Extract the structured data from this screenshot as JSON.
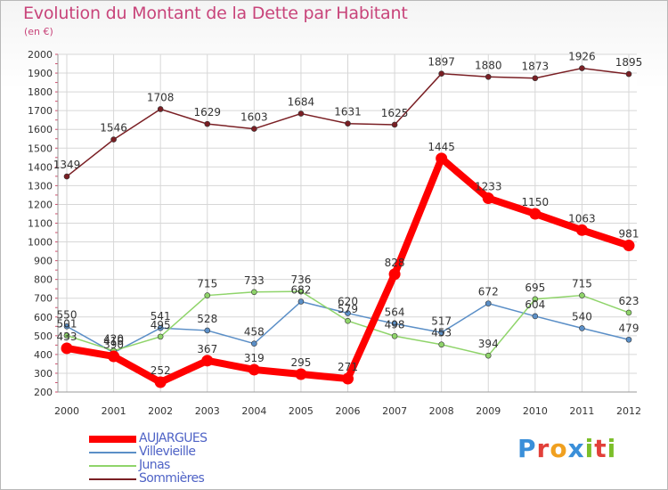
{
  "header": {
    "title": "Evolution du Montant de la Dette par Habitant",
    "subtitle": "(en €)"
  },
  "logo": {
    "text": "Proxiti",
    "letters": [
      "P",
      "r",
      "o",
      "x",
      "i",
      "t",
      "i"
    ],
    "colors": [
      "#3a8fd9",
      "#e2403a",
      "#f0a020",
      "#3a8fd9",
      "#7cbf2a",
      "#e2403a",
      "#7cbf2a"
    ]
  },
  "chart_data": {
    "type": "line",
    "x": [
      "2000",
      "2001",
      "2002",
      "2003",
      "2004",
      "2005",
      "2006",
      "2007",
      "2008",
      "2009",
      "2010",
      "2011",
      "2012"
    ],
    "ylim": [
      200,
      2000
    ],
    "yticks": [
      200,
      300,
      400,
      500,
      600,
      700,
      800,
      900,
      1000,
      1100,
      1200,
      1300,
      1400,
      1500,
      1600,
      1700,
      1800,
      1900,
      2000
    ],
    "grid": true,
    "legend_position": "bottom-left",
    "series": [
      {
        "name": "AUJARGUES",
        "color": "#ff0000",
        "values": [
          433,
          390,
          252,
          367,
          319,
          295,
          271,
          828,
          1445,
          1233,
          1150,
          1063,
          981
        ],
        "labels": [
          "433",
          "390",
          "252",
          "367",
          "319",
          "295",
          "271",
          "828",
          "1445",
          "1233",
          "1150",
          "1063",
          "981"
        ]
      },
      {
        "name": "Villevieille",
        "color": "#5b8fc7",
        "values": [
          550,
          410,
          541,
          528,
          458,
          682,
          620,
          564,
          517,
          672,
          604,
          540,
          479
        ],
        "labels": [
          "550",
          "410",
          "541",
          "528",
          "458",
          "682",
          "620",
          "564",
          "517",
          "672",
          "604",
          "540",
          "479"
        ]
      },
      {
        "name": "Junas",
        "color": "#8fd46a",
        "values": [
          501,
          420,
          495,
          715,
          733,
          736,
          579,
          498,
          453,
          394,
          695,
          715,
          623
        ],
        "labels": [
          "501",
          "420",
          "495",
          "715",
          "733",
          "736",
          "579",
          "498",
          "453",
          "394",
          "695",
          "715",
          "623"
        ]
      },
      {
        "name": "Sommières",
        "color": "#7a1f24",
        "values": [
          1349,
          1546,
          1708,
          1629,
          1603,
          1684,
          1631,
          1625,
          1897,
          1880,
          1873,
          1926,
          1895
        ],
        "labels": [
          "1349",
          "1546",
          "1708",
          "1629",
          "1603",
          "1684",
          "1631",
          "1625",
          "1897",
          "1880",
          "1873",
          "1926",
          "1895"
        ]
      }
    ]
  }
}
